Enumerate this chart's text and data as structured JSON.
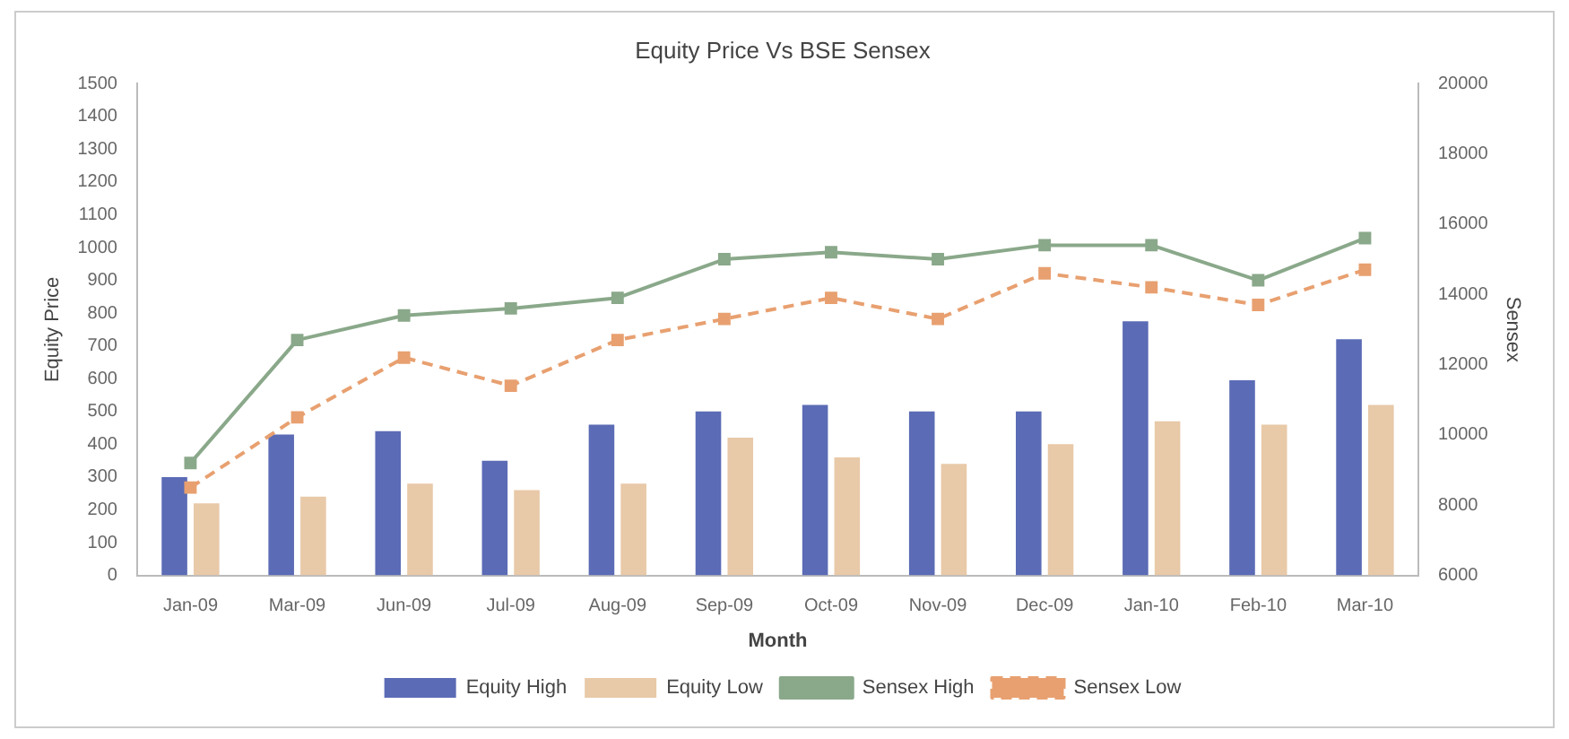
{
  "chart_data": {
    "type": "bar",
    "title": "Equity Price Vs BSE Sensex",
    "xlabel": "Month",
    "ylabel": "Equity Price",
    "y2label": "Sensex",
    "categories": [
      "Jan-09",
      "Mar-09",
      "Jun-09",
      "Jul-09",
      "Aug-09",
      "Sep-09",
      "Oct-09",
      "Nov-09",
      "Dec-09",
      "Jan-10",
      "Feb-10",
      "Mar-10"
    ],
    "series": [
      {
        "name": "Equity High",
        "color": "#5b6bb5",
        "values": [
          300,
          430,
          440,
          350,
          460,
          500,
          520,
          500,
          500,
          775,
          595,
          720
        ]
      },
      {
        "name": "Equity Low",
        "color": "#e8c9a8",
        "values": [
          220,
          240,
          280,
          260,
          280,
          420,
          360,
          340,
          400,
          470,
          460,
          520
        ]
      },
      {
        "name": "Sensex High",
        "type": "line",
        "axis": "y2",
        "color": "#8aa88a",
        "marker": "square",
        "line_style": "solid",
        "values": [
          9200,
          12700,
          13400,
          13600,
          13900,
          15000,
          15200,
          15000,
          15400,
          15400,
          14400,
          15600
        ]
      },
      {
        "name": "Sensex Low",
        "type": "line",
        "axis": "y2",
        "color": "#e8a070",
        "marker": "square",
        "line_style": "dashed",
        "values": [
          8500,
          10500,
          12200,
          11400,
          12700,
          13300,
          13900,
          13300,
          14600,
          14200,
          13700,
          14700
        ]
      }
    ],
    "ylim": [
      0,
      1500
    ],
    "yticks": [
      0,
      100,
      200,
      300,
      400,
      500,
      600,
      700,
      800,
      900,
      1000,
      1100,
      1200,
      1300,
      1400,
      1500
    ],
    "y2lim": [
      6000,
      20000
    ],
    "y2ticks": [
      6000,
      8000,
      10000,
      12000,
      14000,
      16000,
      18000,
      20000
    ],
    "grid": false,
    "legend": "bottom"
  }
}
